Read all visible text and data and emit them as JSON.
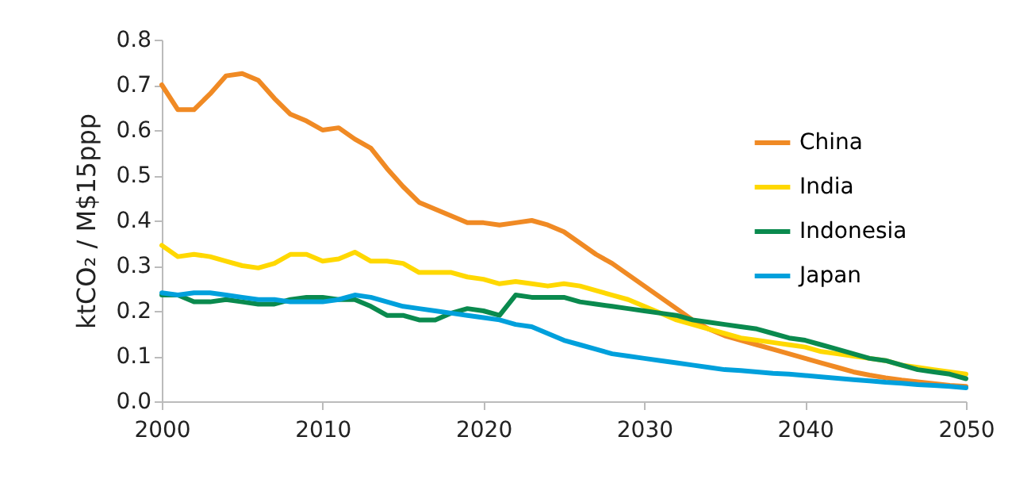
{
  "chart_data": {
    "type": "line",
    "ylabel": "ktCO₂ / M$15ppp",
    "x": [
      2000,
      2001,
      2002,
      2003,
      2004,
      2005,
      2006,
      2007,
      2008,
      2009,
      2010,
      2011,
      2012,
      2013,
      2014,
      2015,
      2016,
      2017,
      2018,
      2019,
      2020,
      2021,
      2022,
      2023,
      2024,
      2025,
      2026,
      2027,
      2028,
      2029,
      2030,
      2031,
      2032,
      2033,
      2034,
      2035,
      2036,
      2037,
      2038,
      2039,
      2040,
      2041,
      2042,
      2043,
      2044,
      2045,
      2046,
      2047,
      2048,
      2049,
      2050
    ],
    "series": [
      {
        "name": "China",
        "color": "#f08a24",
        "values": [
          0.7,
          0.645,
          0.645,
          0.68,
          0.72,
          0.725,
          0.71,
          0.67,
          0.635,
          0.62,
          0.6,
          0.605,
          0.58,
          0.56,
          0.515,
          0.475,
          0.44,
          0.425,
          0.41,
          0.395,
          0.395,
          0.39,
          0.395,
          0.4,
          0.39,
          0.375,
          0.35,
          0.325,
          0.305,
          0.28,
          0.255,
          0.23,
          0.205,
          0.18,
          0.16,
          0.145,
          0.135,
          0.125,
          0.115,
          0.105,
          0.095,
          0.085,
          0.075,
          0.065,
          0.058,
          0.052,
          0.047,
          0.043,
          0.039,
          0.035,
          0.033
        ]
      },
      {
        "name": "India",
        "color": "#ffd800",
        "values": [
          0.345,
          0.32,
          0.325,
          0.32,
          0.31,
          0.3,
          0.295,
          0.305,
          0.325,
          0.325,
          0.31,
          0.315,
          0.33,
          0.31,
          0.31,
          0.305,
          0.285,
          0.285,
          0.285,
          0.275,
          0.27,
          0.26,
          0.265,
          0.26,
          0.255,
          0.26,
          0.255,
          0.245,
          0.235,
          0.225,
          0.21,
          0.195,
          0.18,
          0.17,
          0.16,
          0.15,
          0.14,
          0.135,
          0.13,
          0.125,
          0.12,
          0.11,
          0.105,
          0.1,
          0.095,
          0.09,
          0.08,
          0.075,
          0.07,
          0.065,
          0.06
        ]
      },
      {
        "name": "Indonesia",
        "color": "#0a8a4e",
        "values": [
          0.235,
          0.235,
          0.22,
          0.22,
          0.225,
          0.22,
          0.215,
          0.215,
          0.225,
          0.23,
          0.23,
          0.225,
          0.225,
          0.21,
          0.19,
          0.19,
          0.18,
          0.18,
          0.195,
          0.205,
          0.2,
          0.19,
          0.235,
          0.23,
          0.23,
          0.23,
          0.22,
          0.215,
          0.21,
          0.205,
          0.2,
          0.195,
          0.19,
          0.18,
          0.175,
          0.17,
          0.165,
          0.16,
          0.15,
          0.14,
          0.135,
          0.125,
          0.115,
          0.105,
          0.095,
          0.09,
          0.08,
          0.07,
          0.065,
          0.06,
          0.05
        ]
      },
      {
        "name": "Japan",
        "color": "#00a0dc",
        "values": [
          0.24,
          0.235,
          0.24,
          0.24,
          0.235,
          0.23,
          0.225,
          0.225,
          0.22,
          0.22,
          0.22,
          0.225,
          0.235,
          0.23,
          0.22,
          0.21,
          0.205,
          0.2,
          0.195,
          0.19,
          0.185,
          0.18,
          0.17,
          0.165,
          0.15,
          0.135,
          0.125,
          0.115,
          0.105,
          0.1,
          0.095,
          0.09,
          0.085,
          0.08,
          0.075,
          0.07,
          0.068,
          0.065,
          0.062,
          0.06,
          0.057,
          0.054,
          0.051,
          0.048,
          0.045,
          0.042,
          0.04,
          0.037,
          0.035,
          0.033,
          0.03
        ]
      }
    ],
    "xlim": [
      2000,
      2050
    ],
    "xticks": [
      2000,
      2010,
      2020,
      2030,
      2040,
      2050
    ],
    "ylim": [
      0,
      0.8
    ],
    "yticks": [
      {
        "value": 0,
        "label": "0.0"
      },
      0.1,
      0.2,
      0.3,
      0.4,
      0.5,
      0.6,
      0.7,
      0.8
    ],
    "legend": "right",
    "grid": false
  }
}
